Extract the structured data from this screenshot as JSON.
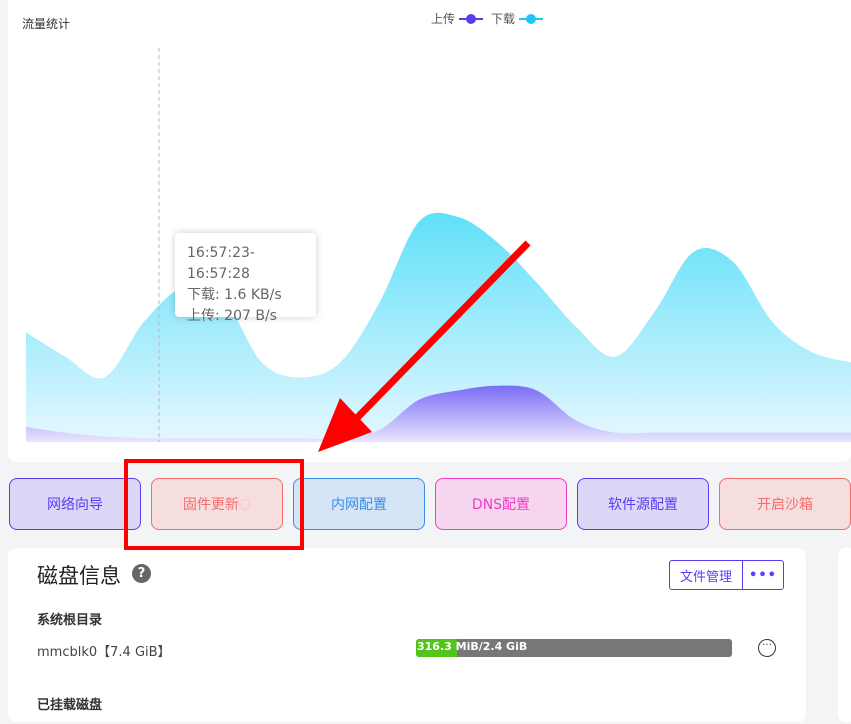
{
  "chart": {
    "title": "流量统计",
    "tooltip": {
      "time": "16:57:23-16:57:28",
      "download": "下载: 1.6 KB/s",
      "upload": "上传: 207 B/s"
    }
  },
  "chart_data": {
    "type": "area",
    "title": "流量统计",
    "legend_position": "top-center",
    "grid": false,
    "unit": "KB/s",
    "series": [
      {
        "name": "上传",
        "color": "#5b3cf5",
        "values": [
          0.16,
          0.1,
          0.06,
          0.04,
          0.04,
          0.04,
          0.04,
          0.04,
          0.04,
          0.13,
          0.45,
          0.55,
          0.6,
          0.55,
          0.23,
          0.1,
          0.1,
          0.1,
          0.1,
          0.1,
          0.1,
          0.1
        ]
      },
      {
        "name": "下载",
        "color": "#22c6f5",
        "values": [
          1.17,
          0.91,
          0.69,
          1.28,
          1.65,
          1.55,
          0.85,
          0.69,
          0.85,
          1.49,
          2.35,
          2.4,
          2.13,
          1.7,
          1.23,
          0.91,
          1.39,
          2.03,
          1.92,
          1.28,
          0.96,
          0.85
        ]
      }
    ]
  },
  "buttons": [
    {
      "label": "网络向导",
      "color": "#5b3cf5",
      "bg": "#dcd7f7"
    },
    {
      "label": "固件更新",
      "color": "#f56c6c",
      "bg": "#f7dede",
      "loading": true
    },
    {
      "label": "内网配置",
      "color": "#3a8ee6",
      "bg": "#d6e4f8"
    },
    {
      "label": "DNS配置",
      "color": "#f03cc8",
      "bg": "#f6d6ee"
    },
    {
      "label": "软件源配置",
      "color": "#5b3cf5",
      "bg": "#dcd7f7"
    },
    {
      "label": "开启沙箱",
      "color": "#f56c6c",
      "bg": "#f7dede"
    }
  ],
  "disk": {
    "title": "磁盘信息",
    "help": "?",
    "file_manager": "文件管理",
    "more": "•••",
    "root_label": "系统根目录",
    "device": "mmcblk0【7.4 GiB】",
    "usage_text": "316.3 MiB/2.4 GiB",
    "usage_fraction": 0.129,
    "mounted_label": "已挂载磁盘",
    "row_menu": "···"
  }
}
